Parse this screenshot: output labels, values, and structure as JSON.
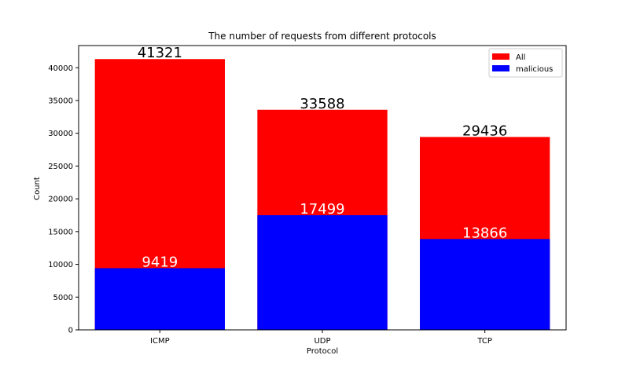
{
  "chart_data": {
    "type": "bar",
    "title": "The number of requests from different protocols",
    "xlabel": "Protocol",
    "ylabel": "Count",
    "categories": [
      "ICMP",
      "UDP",
      "TCP"
    ],
    "ylim": [
      0,
      43387
    ],
    "yticks": [
      0,
      5000,
      10000,
      15000,
      20000,
      25000,
      30000,
      35000,
      40000
    ],
    "grid": false,
    "legend_position": "top-right",
    "series": [
      {
        "name": "All",
        "values": [
          41321,
          33588,
          29436
        ],
        "color": "#ff0000",
        "label_color": "#000000"
      },
      {
        "name": "malicious",
        "values": [
          9419,
          17499,
          13866
        ],
        "color": "#0000ff",
        "label_color": "#ffffff"
      }
    ]
  }
}
